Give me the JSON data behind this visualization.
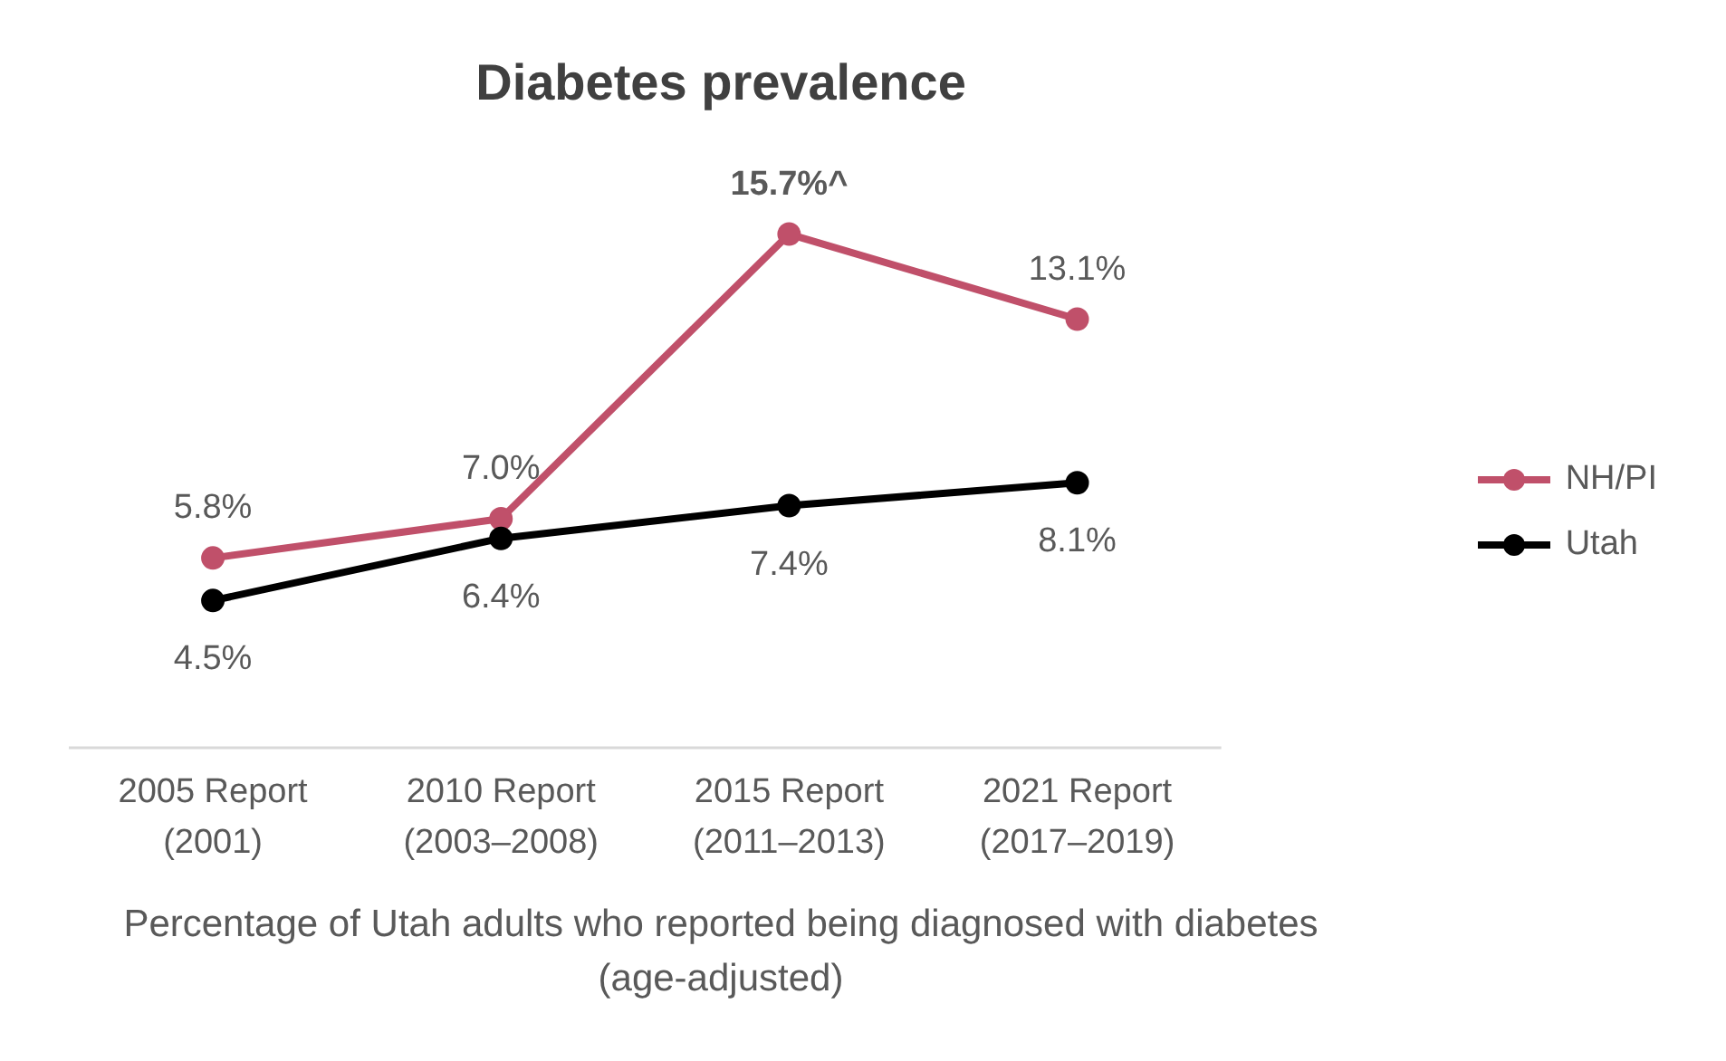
{
  "chart_data": {
    "type": "line",
    "title": "Diabetes prevalence",
    "xlabel": "Percentage of Utah adults who reported being diagnosed with diabetes (age-adjusted)",
    "categories": [
      "2005 Report\n(2001)",
      "2010 Report\n(2003–2008)",
      "2015 Report\n(2011–2013)",
      "2021 Report\n(2017–2019)"
    ],
    "series": [
      {
        "name": "NH/PI",
        "color": "#c0506a",
        "values": [
          5.8,
          7.0,
          15.7,
          13.1
        ],
        "value_labels": [
          "5.8%",
          "7.0%",
          "15.7%^",
          "13.1%"
        ]
      },
      {
        "name": "Utah",
        "color": "#000000",
        "values": [
          4.5,
          6.4,
          7.4,
          8.1
        ],
        "value_labels": [
          "4.5%",
          "6.4%",
          "7.4%",
          "8.1%"
        ]
      }
    ],
    "marker": "circle",
    "line_style": "solid",
    "grid": false,
    "legend": "right"
  }
}
